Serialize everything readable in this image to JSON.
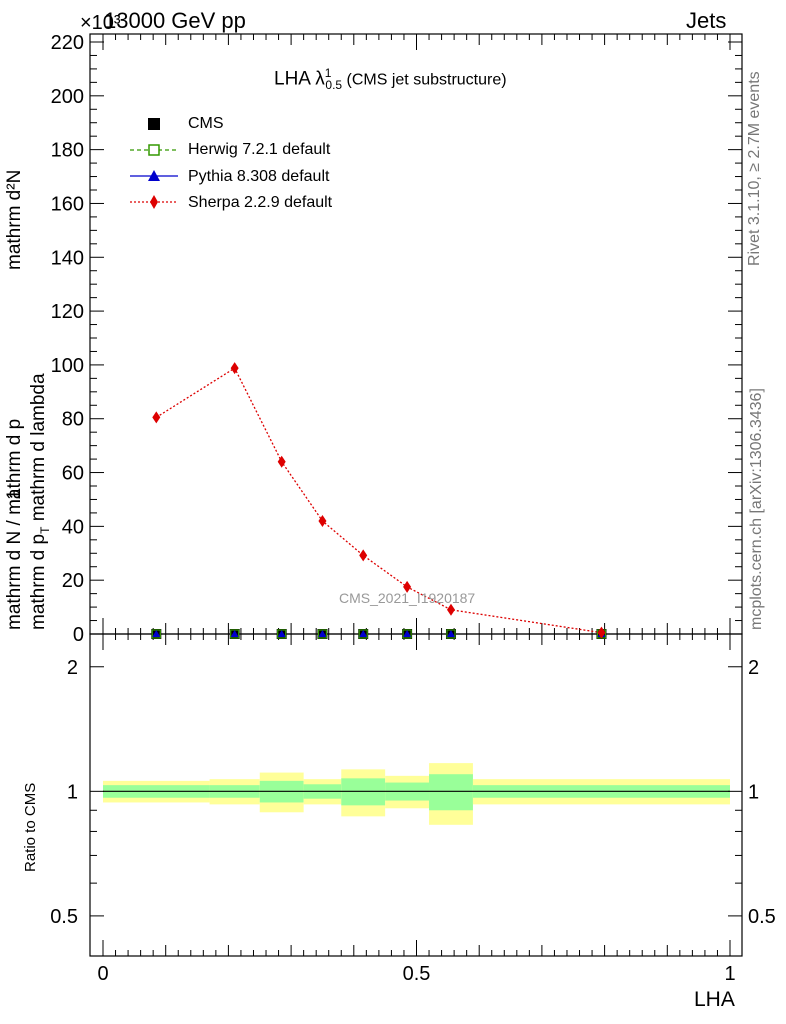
{
  "header": {
    "left": "13000 GeV pp",
    "right": "Jets",
    "exponent": "×10³"
  },
  "side": {
    "rivet": "Rivet 3.1.10, ≥ 2.7M events",
    "mcplots": "mcplots.cern.ch [arXiv:1306.3436]"
  },
  "main_plot": {
    "title_main": "LHA λ",
    "title_sup": "1",
    "title_sub": "0.5",
    "title_suffix": " (CMS jet substructure)",
    "ylabel_part1": "1",
    "ylabel_den": "mathrm d N / mathrm d p",
    "ylabel_num": "mathrm d²N",
    "ylabel_den2": "mathrm d p",
    "ylabel_den2_sub": "T",
    "ylabel_den2_rest": " mathrm d lambda",
    "watermark": "CMS_2021_I1920187"
  },
  "legend": [
    {
      "label": "CMS",
      "color": "#000000",
      "marker": "square-filled"
    },
    {
      "label": "Herwig 7.2.1 default",
      "color": "#339900",
      "marker": "square-open"
    },
    {
      "label": "Pythia 8.308 default",
      "color": "#0000cc",
      "marker": "triangle"
    },
    {
      "label": "Sherpa 2.2.9 default",
      "color": "#dd0000",
      "marker": "diamond"
    }
  ],
  "ratio_plot": {
    "ylabel": "Ratio to CMS",
    "xlabel": "LHA"
  },
  "chart_data": {
    "type": "line",
    "title": "LHA λ¹₀.₅ (CMS jet substructure)",
    "xlabel": "LHA",
    "ylabel": "1/(mathrm d N / mathrm d p_T) mathrm d²N/(mathrm d p_T mathrm d lambda)",
    "y_exponent": 3,
    "xlim": [
      0,
      1
    ],
    "ylim": [
      0,
      220
    ],
    "x_ticks": [
      0,
      0.5,
      1
    ],
    "y_ticks": [
      0,
      20,
      40,
      60,
      80,
      100,
      120,
      140,
      160,
      180,
      200,
      220
    ],
    "bins": [
      {
        "x": 0.085,
        "lo": 0.0,
        "hi": 0.17
      },
      {
        "x": 0.21,
        "lo": 0.17,
        "hi": 0.25
      },
      {
        "x": 0.285,
        "lo": 0.25,
        "hi": 0.32
      },
      {
        "x": 0.35,
        "lo": 0.32,
        "hi": 0.38
      },
      {
        "x": 0.415,
        "lo": 0.38,
        "hi": 0.45
      },
      {
        "x": 0.485,
        "lo": 0.45,
        "hi": 0.52
      },
      {
        "x": 0.555,
        "lo": 0.52,
        "hi": 0.59
      },
      {
        "x": 0.795,
        "lo": 0.59,
        "hi": 1.0
      }
    ],
    "series": [
      {
        "name": "CMS",
        "values": [
          0.0,
          0.0,
          0.0,
          0.0,
          0.0,
          0.0,
          0.0,
          0.0
        ]
      },
      {
        "name": "Herwig 7.2.1 default",
        "values": [
          0.0,
          0.0,
          0.0,
          0.0,
          0.0,
          0.0,
          0.0,
          0.0
        ]
      },
      {
        "name": "Pythia 8.308 default",
        "values": [
          0.0,
          0.0,
          0.0,
          0.0,
          0.0,
          0.0,
          0.0,
          0.0
        ]
      },
      {
        "name": "Sherpa 2.2.9 default",
        "values": [
          80.5,
          98.8,
          64.0,
          42.0,
          29.2,
          17.5,
          9.0,
          0.5
        ]
      }
    ],
    "ratio": {
      "ylabel": "Ratio to CMS",
      "ylim": [
        0.4,
        2.4
      ],
      "log_scale": true,
      "y_ticks": [
        0.5,
        1,
        2
      ],
      "band_stat": [
        0.035,
        0.035,
        0.06,
        0.04,
        0.075,
        0.05,
        0.1,
        0.035
      ],
      "band_total": [
        0.06,
        0.07,
        0.11,
        0.07,
        0.13,
        0.09,
        0.17,
        0.07
      ],
      "colors": {
        "stat": "#99ff99",
        "total": "#ffff99"
      }
    }
  }
}
